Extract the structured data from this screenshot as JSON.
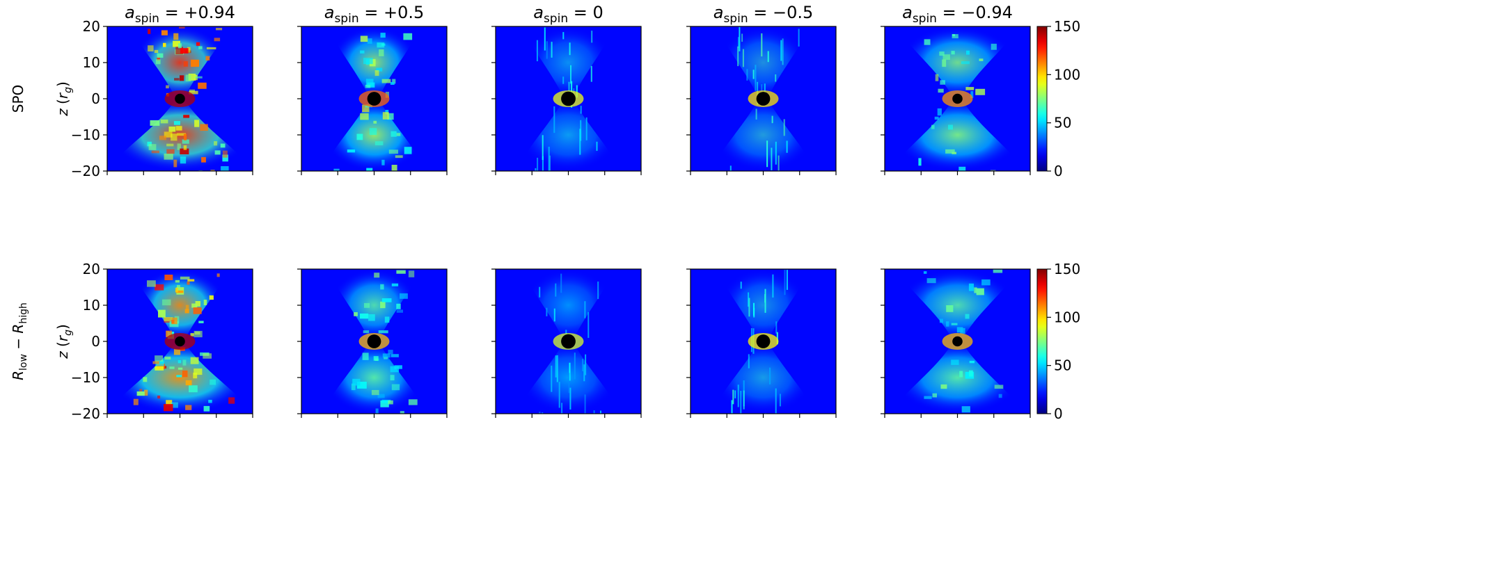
{
  "figure": {
    "column_titles": [
      {
        "base": "a",
        "sub": "spin",
        "value": "= +0.94"
      },
      {
        "base": "a",
        "sub": "spin",
        "value": "= +0.5"
      },
      {
        "base": "a",
        "sub": "spin",
        "value": "= 0"
      },
      {
        "base": "a",
        "sub": "spin",
        "value": "= −0.5"
      },
      {
        "base": "a",
        "sub": "spin",
        "value": "= −0.94"
      }
    ],
    "row_labels": [
      {
        "parts": [
          {
            "t": "SPO"
          }
        ]
      },
      {
        "parts": [
          {
            "t": "R",
            "i": true
          },
          {
            "t": "low",
            "sub": true
          },
          {
            "t": " − "
          },
          {
            "t": "R",
            "i": true
          },
          {
            "t": "high",
            "sub": true
          }
        ]
      }
    ],
    "ylabel": {
      "italic_var": "z",
      "unit_base": "r",
      "unit_sub": "g"
    },
    "colorbar": {
      "ticks": [
        0,
        50,
        100,
        150
      ],
      "colormap": "jet"
    }
  },
  "chart_data": {
    "type": "heatmap",
    "rows": [
      "SPO",
      "R_low - R_high"
    ],
    "columns": [
      "+0.94",
      "+0.5",
      "0",
      "-0.5",
      "-0.94"
    ],
    "ylim": [
      -20,
      20
    ],
    "yticks": [
      -20,
      -10,
      0,
      10,
      20
    ],
    "x_tick_count": 5,
    "clim": [
      0,
      150
    ],
    "colormap": "jet",
    "panel_intensity": [
      [
        0.62,
        0.32,
        0.16,
        0.2,
        0.28
      ],
      [
        0.52,
        0.24,
        0.14,
        0.18,
        0.24
      ]
    ],
    "panel_style": [
      [
        "cone-bright",
        "patchy",
        "filament",
        "filament",
        "hourglass"
      ],
      [
        "cone-bright",
        "patchy",
        "filament",
        "filament",
        "hourglass"
      ]
    ],
    "black_hole_radius_rg": [
      [
        1.4,
        1.9,
        2.0,
        1.9,
        1.4
      ],
      [
        1.4,
        1.9,
        2.0,
        1.9,
        1.4
      ]
    ]
  }
}
